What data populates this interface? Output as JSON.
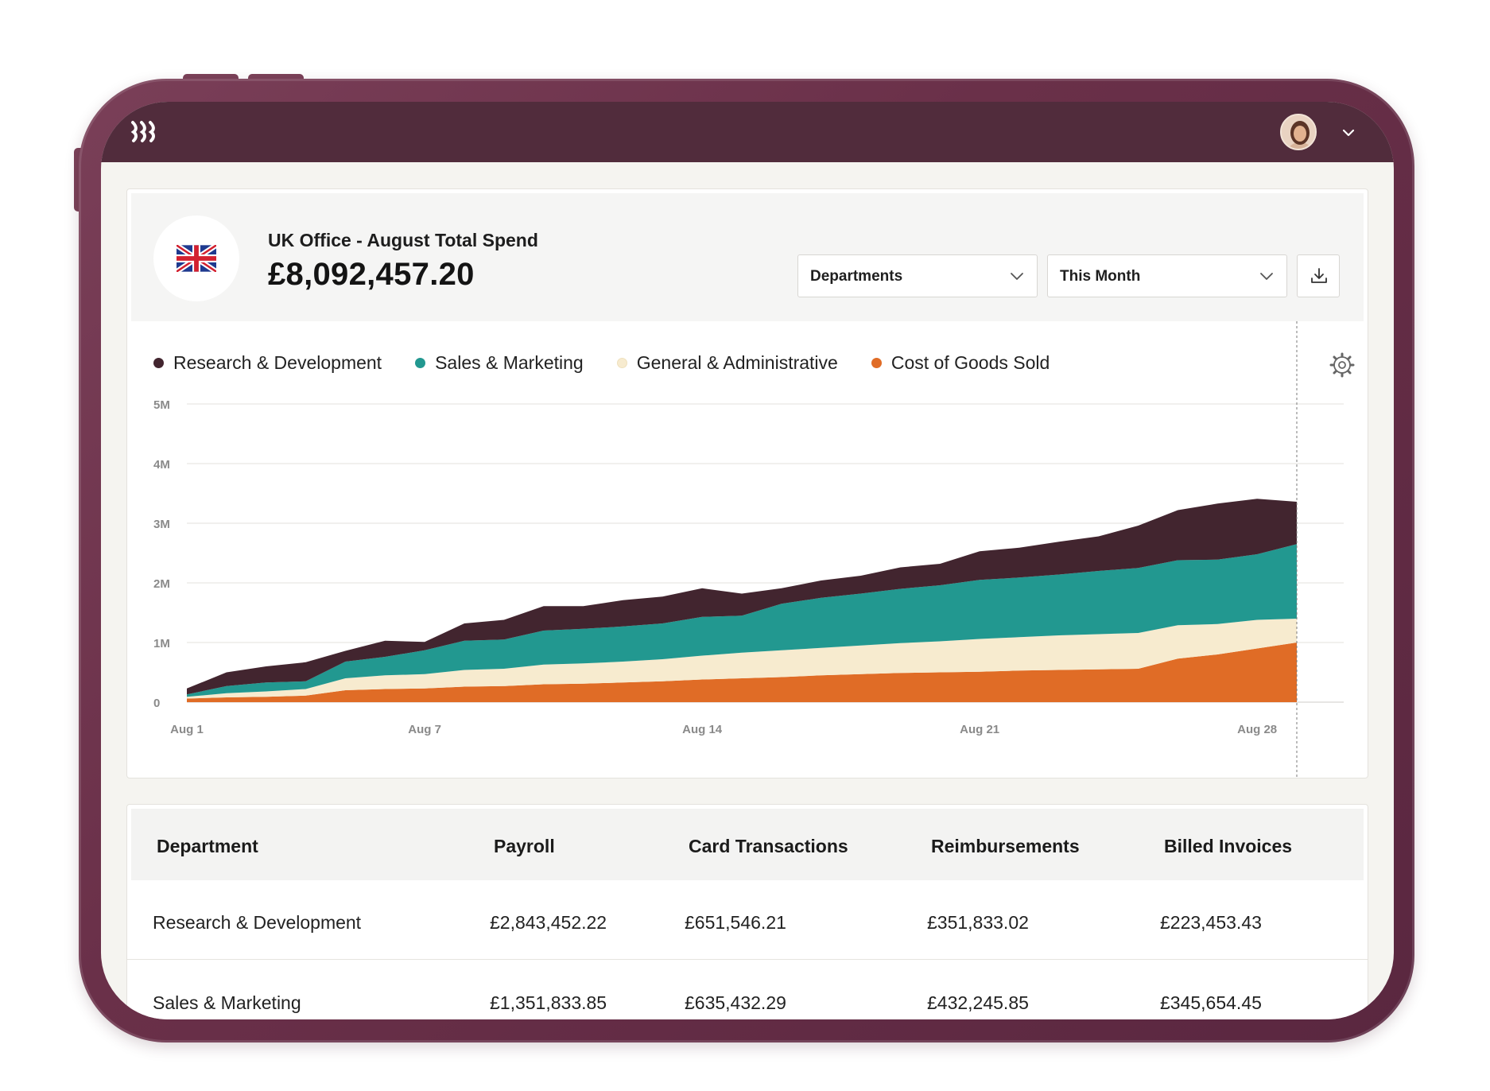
{
  "header": {
    "avatar_alt": "user avatar"
  },
  "summary": {
    "label": "UK Office - August Total Spend",
    "total": "£8,092,457.20"
  },
  "filters": {
    "group_by": "Departments",
    "period": "This Month"
  },
  "colors": {
    "rd": "#42252f",
    "sm": "#229890",
    "ga": "#f7ebcf",
    "cogs": "#e06c26",
    "brand": "#512c3c"
  },
  "chart_data": {
    "type": "area",
    "stacked": true,
    "legend_position": "top-left",
    "grid": true,
    "x": [
      "Aug 1",
      "Aug 2",
      "Aug 3",
      "Aug 4",
      "Aug 5",
      "Aug 6",
      "Aug 7",
      "Aug 8",
      "Aug 9",
      "Aug 10",
      "Aug 11",
      "Aug 12",
      "Aug 13",
      "Aug 14",
      "Aug 15",
      "Aug 16",
      "Aug 17",
      "Aug 18",
      "Aug 19",
      "Aug 20",
      "Aug 21",
      "Aug 22",
      "Aug 23",
      "Aug 24",
      "Aug 25",
      "Aug 26",
      "Aug 27",
      "Aug 28",
      "Aug 29"
    ],
    "x_ticks": [
      "Aug 1",
      "Aug 7",
      "Aug 14",
      "Aug 21",
      "Aug 28"
    ],
    "y_ticks": [
      "0",
      "1M",
      "2M",
      "3M",
      "4M",
      "5M"
    ],
    "ylim": [
      0,
      5000000
    ],
    "series": [
      {
        "name": "Cost of Goods Sold",
        "values": [
          60000,
          80000,
          90000,
          110000,
          200000,
          220000,
          230000,
          260000,
          270000,
          300000,
          310000,
          330000,
          350000,
          380000,
          400000,
          420000,
          450000,
          470000,
          490000,
          500000,
          510000,
          530000,
          540000,
          550000,
          560000,
          730000,
          800000,
          900000,
          1000000
        ]
      },
      {
        "name": "General & Administrative",
        "values": [
          30000,
          70000,
          90000,
          110000,
          200000,
          230000,
          240000,
          280000,
          290000,
          330000,
          340000,
          350000,
          370000,
          400000,
          430000,
          450000,
          460000,
          480000,
          500000,
          520000,
          550000,
          560000,
          580000,
          590000,
          600000,
          560000,
          510000,
          480000,
          400000
        ]
      },
      {
        "name": "Sales & Marketing",
        "values": [
          40000,
          120000,
          150000,
          130000,
          280000,
          310000,
          400000,
          490000,
          490000,
          570000,
          580000,
          590000,
          600000,
          650000,
          620000,
          780000,
          840000,
          870000,
          910000,
          940000,
          990000,
          1000000,
          1020000,
          1060000,
          1090000,
          1090000,
          1080000,
          1100000,
          1250000
        ]
      },
      {
        "name": "Research & Development",
        "values": [
          100000,
          230000,
          270000,
          320000,
          180000,
          270000,
          140000,
          290000,
          330000,
          410000,
          380000,
          440000,
          450000,
          480000,
          370000,
          260000,
          290000,
          300000,
          360000,
          360000,
          480000,
          500000,
          550000,
          580000,
          710000,
          840000,
          940000,
          930000,
          710000
        ]
      }
    ]
  },
  "table": {
    "headers": [
      "Department",
      "Payroll",
      "Card Transactions",
      "Reimbursements",
      "Billed Invoices"
    ],
    "rows": [
      [
        "Research & Development",
        "£2,843,452.22",
        "£651,546.21",
        "£351,833.02",
        "£223,453.43"
      ],
      [
        "Sales & Marketing",
        "£1,351,833.85",
        "£635,432.29",
        "£432,245.85",
        "£345,654.45"
      ]
    ]
  }
}
